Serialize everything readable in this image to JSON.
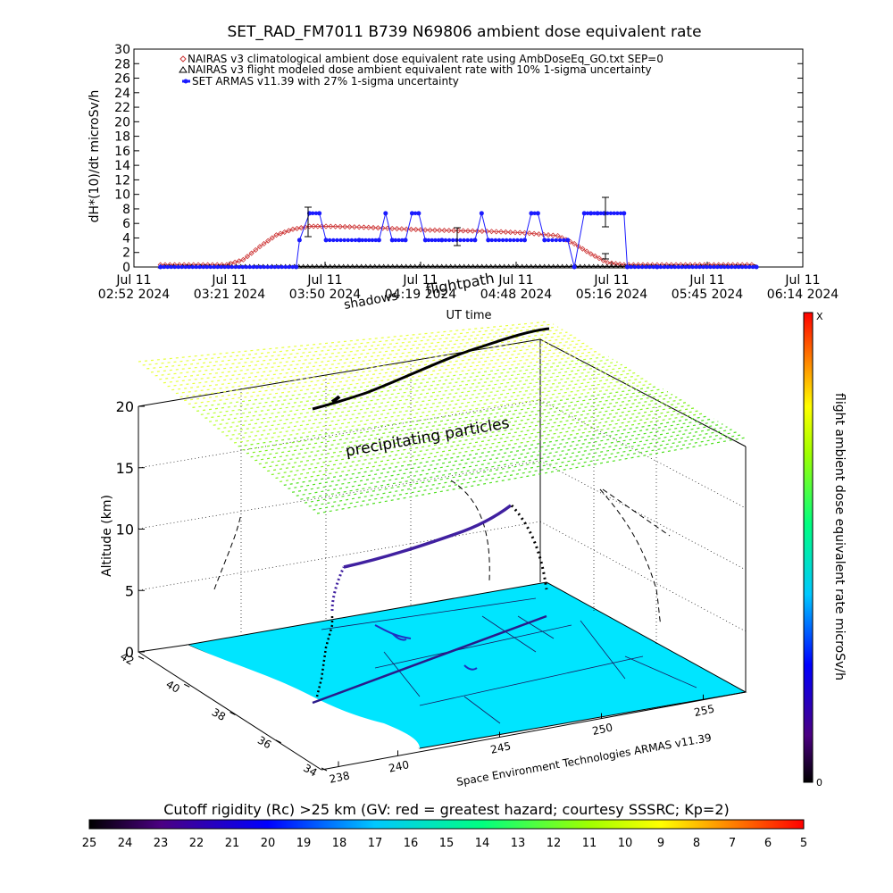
{
  "chart_data": [
    {
      "type": "scatter",
      "title": "SET_RAD_FM7011  B739 N69806 ambient dose equivalent rate",
      "ylabel": "dH*(10)/dt microSv/h",
      "xlabel": "UT time",
      "ylim": [
        0,
        30
      ],
      "yticks": [
        "0",
        "2",
        "4",
        "6",
        "8",
        "10",
        "12",
        "14",
        "16",
        "18",
        "20",
        "22",
        "24",
        "26",
        "28",
        "30"
      ],
      "xlim": [
        "02:52",
        "06:14"
      ],
      "xticks": [
        {
          "date": "Jul 11",
          "time": "02:52 2024"
        },
        {
          "date": "Jul 11",
          "time": "03:21 2024"
        },
        {
          "date": "Jul 11",
          "time": "03:50 2024"
        },
        {
          "date": "Jul 11",
          "time": "04:19 2024"
        },
        {
          "date": "Jul 11",
          "time": "04:48 2024"
        },
        {
          "date": "Jul 11",
          "time": "05:16 2024"
        },
        {
          "date": "Jul 11",
          "time": "05:45 2024"
        },
        {
          "date": "Jul 11",
          "time": "06:14 2024"
        }
      ],
      "legend_position": "top-left",
      "series": [
        {
          "name": "NAIRAS v3 climatological ambient dose equivalent rate using AmbDoseEq_GO.txt SEP=0",
          "color": "#cc3333",
          "marker": "diamond",
          "x": [
            "03:00",
            "03:10",
            "03:20",
            "03:25",
            "03:30",
            "03:35",
            "03:40",
            "03:45",
            "03:50",
            "04:00",
            "04:10",
            "04:20",
            "04:30",
            "04:40",
            "04:50",
            "05:00",
            "05:05",
            "05:10",
            "05:15",
            "05:20",
            "05:30",
            "05:40",
            "05:50",
            "06:00"
          ],
          "values": [
            0.3,
            0.3,
            0.3,
            1.0,
            2.8,
            4.4,
            5.2,
            5.6,
            5.6,
            5.5,
            5.3,
            5.1,
            5.0,
            4.9,
            4.7,
            4.3,
            3.2,
            1.8,
            0.6,
            0.3,
            0.3,
            0.3,
            0.3,
            0.3
          ]
        },
        {
          "name": "NAIRAS v3 flight modeled dose ambient equivalent rate with 10% 1-sigma uncertainty",
          "color": "#000000",
          "marker": "triangle",
          "x": [
            "03:00",
            "03:30",
            "03:45",
            "04:00",
            "04:30",
            "05:00",
            "05:20",
            "05:45",
            "06:00"
          ],
          "values": [
            0.1,
            0.1,
            0.1,
            0.1,
            0.1,
            0.1,
            0.1,
            0.1,
            0.1
          ]
        },
        {
          "name": "SET ARMAS v11.39 with 27% 1-sigma uncertainty",
          "color": "#1a1aff",
          "marker": "circle",
          "x": [
            "03:00",
            "03:41",
            "03:42",
            "03:45",
            "03:48",
            "03:50",
            "04:00",
            "04:06",
            "04:08",
            "04:10",
            "04:14",
            "04:16",
            "04:18",
            "04:20",
            "04:25",
            "04:35",
            "04:37",
            "04:39",
            "04:50",
            "04:52",
            "04:54",
            "04:56",
            "05:03",
            "05:05",
            "05:08",
            "05:10",
            "05:12",
            "05:14",
            "05:20",
            "05:21",
            "05:30",
            "06:00"
          ],
          "values": [
            0,
            0,
            3.7,
            7.4,
            7.4,
            3.7,
            3.7,
            3.7,
            7.4,
            3.7,
            3.7,
            7.4,
            7.4,
            3.7,
            3.7,
            3.7,
            7.4,
            3.7,
            3.7,
            7.4,
            7.4,
            3.7,
            3.7,
            0,
            7.4,
            7.4,
            7.4,
            7.4,
            7.4,
            0,
            0,
            0
          ]
        }
      ]
    },
    {
      "type": "scatter",
      "zlabel": "Altitude (km)",
      "zticks": [
        "0",
        "5",
        "10",
        "15",
        "20"
      ],
      "latitude_ticks": [
        "34",
        "36",
        "38",
        "40",
        "42"
      ],
      "longitude_ticks": [
        "238",
        "240",
        "245",
        "250",
        "255"
      ],
      "annotations": [
        "shadows",
        "flightpath",
        "precipitating particles"
      ],
      "credit": "Space Environment Technologies ARMAS v11.39"
    },
    {
      "type": "heatmap",
      "side_colorbar_label": "flight ambient dose equivalent rate microSv/h",
      "side_colorbar_top": "X",
      "side_colorbar_bottom": "0",
      "bottom_colorbar_label": "Cutoff rigidity (Rc) >25 km (GV: red = greatest hazard; courtesy SSSRC; Kp=2)",
      "bottom_colorbar_ticks": [
        "25",
        "24",
        "23",
        "22",
        "21",
        "20",
        "19",
        "18",
        "17",
        "16",
        "15",
        "14",
        "13",
        "12",
        "11",
        "10",
        "9",
        "8",
        "7",
        "6",
        "5"
      ]
    }
  ]
}
